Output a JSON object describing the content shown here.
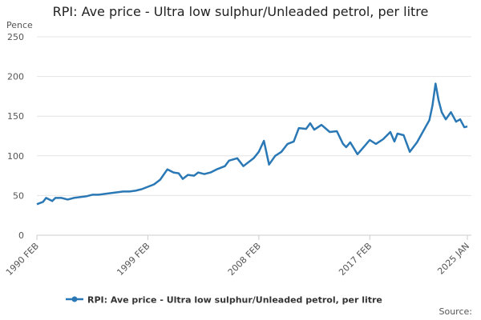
{
  "chart_data": {
    "type": "line",
    "title": "RPI: Ave price - Ultra low sulphur/Unleaded petrol, per litre",
    "y_label": "Pence",
    "source": "Source:",
    "x": [
      "1990 FEB",
      "1990 AUG",
      "1990 NOV",
      "1991 MAY",
      "1991 AUG",
      "1992 FEB",
      "1992 AUG",
      "1993 FEB",
      "1993 AUG",
      "1994 FEB",
      "1994 AUG",
      "1995 FEB",
      "1995 AUG",
      "1996 FEB",
      "1996 AUG",
      "1997 FEB",
      "1997 AUG",
      "1998 FEB",
      "1998 AUG",
      "1999 FEB",
      "1999 AUG",
      "2000 FEB",
      "2000 SEP",
      "2001 MAR",
      "2001 AUG",
      "2001 DEC",
      "2002 MAY",
      "2002 NOV",
      "2003 MAR",
      "2003 SEP",
      "2004 MAR",
      "2004 SEP",
      "2005 MAY",
      "2005 SEP",
      "2006 MAY",
      "2006 NOV",
      "2007 MAR",
      "2007 SEP",
      "2008 FEB",
      "2008 JUL",
      "2008 DEC",
      "2009 JUN",
      "2009 DEC",
      "2010 JUN",
      "2010 DEC",
      "2011 MAY",
      "2011 DEC",
      "2012 APR",
      "2012 AUG",
      "2013 MAR",
      "2013 NOV",
      "2014 JUN",
      "2014 DEC",
      "2015 MAR",
      "2015 JUL",
      "2016 FEB",
      "2016 AUG",
      "2017 FEB",
      "2017 AUG",
      "2018 MAR",
      "2018 OCT",
      "2019 FEB",
      "2019 MAY",
      "2019 NOV",
      "2020 MAY",
      "2020 DEC",
      "2021 JUN",
      "2021 DEC",
      "2022 MAR",
      "2022 JUN",
      "2022 SEP",
      "2022 DEC",
      "2023 APR",
      "2023 SEP",
      "2024 FEB",
      "2024 JUN",
      "2024 OCT",
      "2025 JAN"
    ],
    "series": [
      {
        "name": "RPI: Ave price - Ultra low sulphur/Unleaded petrol, per litre",
        "color": "#2a78b5",
        "values": [
          39,
          42,
          47,
          43,
          47,
          47,
          45,
          47,
          48,
          49,
          51,
          51,
          52,
          53,
          54,
          55,
          55,
          56,
          58,
          61,
          64,
          70,
          83,
          79,
          78,
          71,
          76,
          75,
          79,
          77,
          79,
          83,
          87,
          94,
          97,
          87,
          91,
          97,
          105,
          119,
          89,
          100,
          105,
          115,
          118,
          135,
          134,
          141,
          133,
          139,
          130,
          131,
          115,
          111,
          117,
          102,
          111,
          120,
          115,
          121,
          130,
          118,
          128,
          126,
          105,
          117,
          131,
          145,
          163,
          191,
          170,
          155,
          146,
          155,
          143,
          146,
          136,
          137
        ]
      }
    ],
    "xlim": [
      "1990 FEB",
      "2025 JAN"
    ],
    "xticks": [
      "1990 FEB",
      "1999 FEB",
      "2008 FEB",
      "2017 FEB",
      "2025 JAN"
    ],
    "ylim": [
      0,
      250
    ],
    "yticks": [
      0,
      50,
      100,
      150,
      200,
      250
    ],
    "grid": true,
    "legend": "bottom"
  }
}
